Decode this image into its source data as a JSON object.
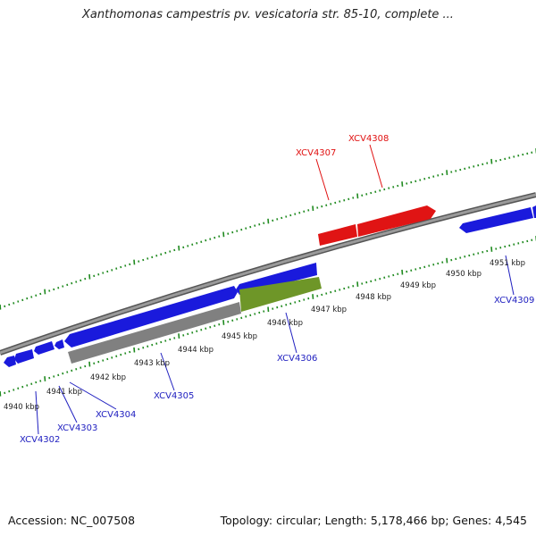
{
  "title": "Xanthomonas campestris pv. vesicatoria str. 85-10, complete ...",
  "colors": {
    "backbone": "#8a8a8a",
    "tick": "#1f8a1f",
    "gene_blue": "#1a1adc",
    "gene_red": "#e01414",
    "gene_grey": "#808080",
    "gene_olive": "#6e9628",
    "label_blue": "#2020c0",
    "label_red": "#e01010"
  },
  "kbp_labels": [
    "4940 kbp",
    "4941 kbp",
    "4942 kbp",
    "4943 kbp",
    "4944 kbp",
    "4945 kbp",
    "4946 kbp",
    "4947 kbp",
    "4948 kbp",
    "4949 kbp",
    "4950 kbp",
    "4951 kbp"
  ],
  "gene_labels": [
    {
      "name": "XCV4302",
      "color": "blue"
    },
    {
      "name": "XCV4303",
      "color": "blue"
    },
    {
      "name": "XCV4304",
      "color": "blue"
    },
    {
      "name": "XCV4305",
      "color": "blue"
    },
    {
      "name": "XCV4306",
      "color": "blue"
    },
    {
      "name": "XCV4307",
      "color": "red"
    },
    {
      "name": "XCV4308",
      "color": "red"
    },
    {
      "name": "XCV4309",
      "color": "blue"
    }
  ],
  "footer": {
    "accession": "Accession: NC_007508",
    "stats": "Topology: circular; Length: 5,178,466 bp; Genes: 4,545"
  }
}
